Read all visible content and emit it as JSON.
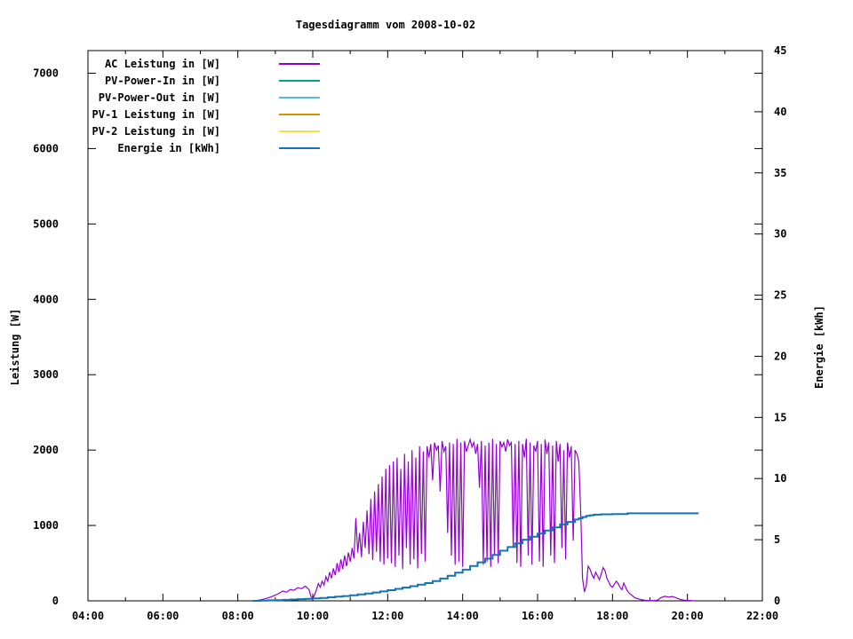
{
  "chart_data": {
    "type": "line",
    "title": "Tagesdiagramm vom 2008-10-02",
    "ylabel": "Leistung [W]",
    "y2label": "Energie [kWh]",
    "legend_position": "top-left-inside",
    "grid": false,
    "x_axis": {
      "unit": "hours",
      "range": [
        4,
        22
      ],
      "major_ticks": [
        {
          "t": 4,
          "label": "04:00"
        },
        {
          "t": 6,
          "label": "06:00"
        },
        {
          "t": 8,
          "label": "08:00"
        },
        {
          "t": 10,
          "label": "10:00"
        },
        {
          "t": 12,
          "label": "12:00"
        },
        {
          "t": 14,
          "label": "14:00"
        },
        {
          "t": 16,
          "label": "16:00"
        },
        {
          "t": 18,
          "label": "18:00"
        },
        {
          "t": 20,
          "label": "20:00"
        },
        {
          "t": 22,
          "label": "22:00"
        }
      ],
      "minor_ticks": [
        5,
        7,
        9,
        11,
        13,
        15,
        17,
        19,
        21
      ]
    },
    "y_left": {
      "range": [
        0,
        7300
      ],
      "ticks": [
        0,
        1000,
        2000,
        3000,
        4000,
        5000,
        6000,
        7000
      ]
    },
    "y_right": {
      "range": [
        0,
        45
      ],
      "ticks": [
        0,
        5,
        10,
        15,
        20,
        25,
        30,
        35,
        40,
        45
      ]
    },
    "series": [
      {
        "name": "AC Leistung in [W]",
        "color": "#9400D3",
        "axis": "left",
        "style": "line",
        "stroke_width": 1.2,
        "points": [
          [
            8.4,
            0
          ],
          [
            8.5,
            5
          ],
          [
            8.6,
            12
          ],
          [
            8.7,
            25
          ],
          [
            8.8,
            38
          ],
          [
            8.9,
            55
          ],
          [
            9.0,
            75
          ],
          [
            9.1,
            100
          ],
          [
            9.2,
            130
          ],
          [
            9.3,
            115
          ],
          [
            9.4,
            150
          ],
          [
            9.5,
            140
          ],
          [
            9.6,
            175
          ],
          [
            9.7,
            160
          ],
          [
            9.8,
            195
          ],
          [
            9.9,
            150
          ],
          [
            9.95,
            60
          ],
          [
            10.0,
            25
          ],
          [
            10.05,
            80
          ],
          [
            10.1,
            150
          ],
          [
            10.15,
            230
          ],
          [
            10.2,
            180
          ],
          [
            10.25,
            260
          ],
          [
            10.3,
            210
          ],
          [
            10.35,
            320
          ],
          [
            10.4,
            260
          ],
          [
            10.45,
            380
          ],
          [
            10.5,
            300
          ],
          [
            10.55,
            430
          ],
          [
            10.6,
            340
          ],
          [
            10.65,
            500
          ],
          [
            10.7,
            380
          ],
          [
            10.75,
            550
          ],
          [
            10.8,
            420
          ],
          [
            10.85,
            600
          ],
          [
            10.9,
            460
          ],
          [
            10.95,
            640
          ],
          [
            11.0,
            520
          ],
          [
            11.05,
            700
          ],
          [
            11.1,
            560
          ],
          [
            11.15,
            1100
          ],
          [
            11.2,
            640
          ],
          [
            11.25,
            900
          ],
          [
            11.3,
            580
          ],
          [
            11.35,
            1050
          ],
          [
            11.4,
            700
          ],
          [
            11.45,
            1200
          ],
          [
            11.5,
            620
          ],
          [
            11.55,
            1350
          ],
          [
            11.6,
            540
          ],
          [
            11.65,
            1450
          ],
          [
            11.7,
            650
          ],
          [
            11.75,
            1550
          ],
          [
            11.8,
            520
          ],
          [
            11.85,
            1650
          ],
          [
            11.9,
            480
          ],
          [
            11.95,
            1750
          ],
          [
            12.0,
            560
          ],
          [
            12.05,
            1800
          ],
          [
            12.1,
            500
          ],
          [
            12.15,
            1850
          ],
          [
            12.2,
            450
          ],
          [
            12.25,
            1900
          ],
          [
            12.3,
            600
          ],
          [
            12.35,
            1750
          ],
          [
            12.4,
            420
          ],
          [
            12.45,
            1950
          ],
          [
            12.5,
            700
          ],
          [
            12.55,
            1850
          ],
          [
            12.6,
            480
          ],
          [
            12.65,
            2000
          ],
          [
            12.7,
            550
          ],
          [
            12.75,
            1900
          ],
          [
            12.8,
            430
          ],
          [
            12.85,
            2050
          ],
          [
            12.9,
            620
          ],
          [
            12.95,
            1980
          ],
          [
            13.0,
            520
          ],
          [
            13.05,
            2050
          ],
          [
            13.1,
            1900
          ],
          [
            13.15,
            2080
          ],
          [
            13.2,
            1600
          ],
          [
            13.25,
            2100
          ],
          [
            13.3,
            2000
          ],
          [
            13.35,
            2060
          ],
          [
            13.4,
            1450
          ],
          [
            13.45,
            2120
          ],
          [
            13.5,
            1980
          ],
          [
            13.55,
            2050
          ],
          [
            13.6,
            900
          ],
          [
            13.65,
            2100
          ],
          [
            13.7,
            600
          ],
          [
            13.75,
            2080
          ],
          [
            13.8,
            480
          ],
          [
            13.85,
            2150
          ],
          [
            13.9,
            520
          ],
          [
            13.95,
            2100
          ],
          [
            14.0,
            450
          ],
          [
            14.05,
            2120
          ],
          [
            14.1,
            1980
          ],
          [
            14.15,
            2060
          ],
          [
            14.2,
            2140
          ],
          [
            14.25,
            2040
          ],
          [
            14.3,
            2100
          ],
          [
            14.35,
            1950
          ],
          [
            14.4,
            2080
          ],
          [
            14.45,
            1500
          ],
          [
            14.5,
            2120
          ],
          [
            14.55,
            480
          ],
          [
            14.6,
            2060
          ],
          [
            14.65,
            520
          ],
          [
            14.7,
            2100
          ],
          [
            14.75,
            450
          ],
          [
            14.8,
            2150
          ],
          [
            14.85,
            600
          ],
          [
            14.9,
            2080
          ],
          [
            14.95,
            500
          ],
          [
            15.0,
            2120
          ],
          [
            15.05,
            2040
          ],
          [
            15.1,
            2100
          ],
          [
            15.15,
            1980
          ],
          [
            15.2,
            2140
          ],
          [
            15.25,
            2060
          ],
          [
            15.3,
            2100
          ],
          [
            15.35,
            700
          ],
          [
            15.4,
            2080
          ],
          [
            15.45,
            500
          ],
          [
            15.5,
            2120
          ],
          [
            15.55,
            450
          ],
          [
            15.6,
            2080
          ],
          [
            15.65,
            1900
          ],
          [
            15.7,
            2150
          ],
          [
            15.75,
            600
          ],
          [
            15.8,
            2100
          ],
          [
            15.85,
            480
          ],
          [
            15.9,
            2060
          ],
          [
            15.95,
            1980
          ],
          [
            16.0,
            2120
          ],
          [
            16.05,
            520
          ],
          [
            16.1,
            2080
          ],
          [
            16.15,
            450
          ],
          [
            16.2,
            2140
          ],
          [
            16.25,
            1950
          ],
          [
            16.3,
            2100
          ],
          [
            16.35,
            600
          ],
          [
            16.4,
            2060
          ],
          [
            16.45,
            500
          ],
          [
            16.5,
            2120
          ],
          [
            16.55,
            1850
          ],
          [
            16.6,
            2080
          ],
          [
            16.65,
            700
          ],
          [
            16.7,
            2000
          ],
          [
            16.75,
            550
          ],
          [
            16.8,
            2100
          ],
          [
            16.85,
            1900
          ],
          [
            16.9,
            2050
          ],
          [
            16.95,
            800
          ],
          [
            17.0,
            2000
          ],
          [
            17.05,
            1950
          ],
          [
            17.1,
            1850
          ],
          [
            17.15,
            1200
          ],
          [
            17.2,
            300
          ],
          [
            17.25,
            120
          ],
          [
            17.3,
            200
          ],
          [
            17.35,
            460
          ],
          [
            17.4,
            420
          ],
          [
            17.45,
            350
          ],
          [
            17.5,
            300
          ],
          [
            17.55,
            380
          ],
          [
            17.6,
            330
          ],
          [
            17.65,
            280
          ],
          [
            17.7,
            360
          ],
          [
            17.75,
            440
          ],
          [
            17.8,
            400
          ],
          [
            17.85,
            300
          ],
          [
            17.9,
            250
          ],
          [
            17.95,
            200
          ],
          [
            18.0,
            180
          ],
          [
            18.05,
            220
          ],
          [
            18.1,
            260
          ],
          [
            18.15,
            230
          ],
          [
            18.2,
            180
          ],
          [
            18.25,
            150
          ],
          [
            18.3,
            235
          ],
          [
            18.35,
            180
          ],
          [
            18.4,
            130
          ],
          [
            18.45,
            100
          ],
          [
            18.5,
            80
          ],
          [
            18.55,
            60
          ],
          [
            18.6,
            40
          ],
          [
            18.7,
            25
          ],
          [
            18.8,
            12
          ],
          [
            18.9,
            6
          ],
          [
            19.0,
            4
          ],
          [
            19.1,
            4
          ],
          [
            19.2,
            10
          ],
          [
            19.3,
            45
          ],
          [
            19.4,
            60
          ],
          [
            19.5,
            50
          ],
          [
            19.6,
            58
          ],
          [
            19.7,
            40
          ],
          [
            19.8,
            20
          ],
          [
            19.9,
            10
          ],
          [
            20.0,
            6
          ],
          [
            20.1,
            3
          ],
          [
            20.2,
            0
          ]
        ]
      },
      {
        "name": "PV-Power-In in [W]",
        "color": "#00A287",
        "axis": "left",
        "style": "line",
        "stroke_width": 1.2,
        "points": []
      },
      {
        "name": "PV-Power-Out in [W]",
        "color": "#5CB8EC",
        "axis": "left",
        "style": "line",
        "stroke_width": 1.2,
        "points": []
      },
      {
        "name": "PV-1 Leistung in [W]",
        "color": "#D99000",
        "axis": "left",
        "style": "line",
        "stroke_width": 1.2,
        "points": []
      },
      {
        "name": "PV-2 Leistung in [W]",
        "color": "#EEE24A",
        "axis": "left",
        "style": "line",
        "stroke_width": 1.2,
        "points": []
      },
      {
        "name": "Energie in [kWh]",
        "color": "#1373B4",
        "axis": "right",
        "style": "steps",
        "stroke_width": 2,
        "points": [
          [
            8.4,
            0
          ],
          [
            8.6,
            0.02
          ],
          [
            8.8,
            0.04
          ],
          [
            9.0,
            0.06
          ],
          [
            9.2,
            0.08
          ],
          [
            9.4,
            0.11
          ],
          [
            9.6,
            0.14
          ],
          [
            9.8,
            0.17
          ],
          [
            10.0,
            0.2
          ],
          [
            10.2,
            0.24
          ],
          [
            10.4,
            0.29
          ],
          [
            10.6,
            0.34
          ],
          [
            10.8,
            0.39
          ],
          [
            11.0,
            0.45
          ],
          [
            11.2,
            0.52
          ],
          [
            11.4,
            0.6
          ],
          [
            11.6,
            0.68
          ],
          [
            11.8,
            0.77
          ],
          [
            12.0,
            0.87
          ],
          [
            12.2,
            0.98
          ],
          [
            12.4,
            1.09
          ],
          [
            12.6,
            1.2
          ],
          [
            12.8,
            1.32
          ],
          [
            13.0,
            1.45
          ],
          [
            13.2,
            1.62
          ],
          [
            13.4,
            1.82
          ],
          [
            13.6,
            2.05
          ],
          [
            13.8,
            2.3
          ],
          [
            14.0,
            2.55
          ],
          [
            14.2,
            2.85
          ],
          [
            14.4,
            3.15
          ],
          [
            14.6,
            3.45
          ],
          [
            14.8,
            3.75
          ],
          [
            15.0,
            4.1
          ],
          [
            15.2,
            4.4
          ],
          [
            15.4,
            4.7
          ],
          [
            15.6,
            5.0
          ],
          [
            15.8,
            5.25
          ],
          [
            16.0,
            5.5
          ],
          [
            16.2,
            5.75
          ],
          [
            16.4,
            6.0
          ],
          [
            16.6,
            6.25
          ],
          [
            16.8,
            6.45
          ],
          [
            17.0,
            6.65
          ],
          [
            17.1,
            6.75
          ],
          [
            17.2,
            6.85
          ],
          [
            17.3,
            6.95
          ],
          [
            17.4,
            7.0
          ],
          [
            17.5,
            7.05
          ],
          [
            17.7,
            7.08
          ],
          [
            18.0,
            7.1
          ],
          [
            18.3,
            7.1
          ],
          [
            18.4,
            7.16
          ],
          [
            18.7,
            7.16
          ],
          [
            19.0,
            7.16
          ],
          [
            19.5,
            7.16
          ],
          [
            20.0,
            7.16
          ],
          [
            20.3,
            7.16
          ]
        ]
      }
    ]
  }
}
